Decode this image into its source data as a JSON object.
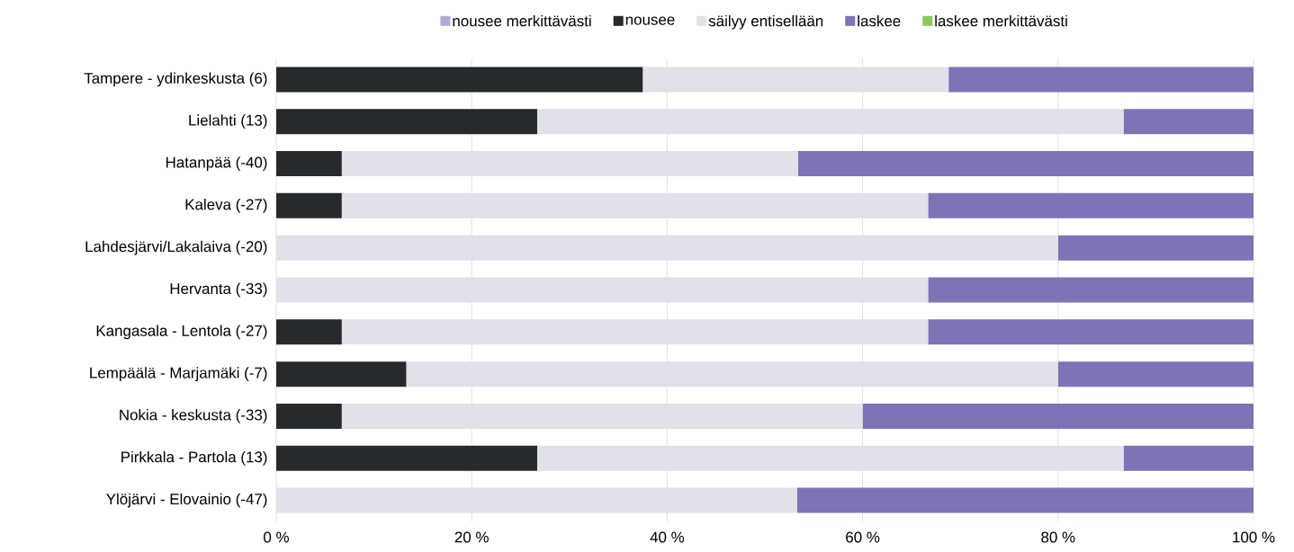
{
  "chart_data": {
    "type": "bar",
    "orientation": "horizontal",
    "stacked": true,
    "grid": "x",
    "legend": "top",
    "categories": [
      "Tampere - ydinkeskusta (6)",
      "Lielahti (13)",
      "Hatanpää (-40)",
      "Kaleva (-27)",
      "Lahdesjärvi/Lakalaiva (-20)",
      "Hervanta (-33)",
      "Kangasala - Lentola (-27)",
      "Lempäälä - Marjamäki (-7)",
      "Nokia - keskusta (-33)",
      "Pirkkala - Partola (13)",
      "Ylöjärvi - Elovainio (-47)"
    ],
    "series": [
      {
        "name": "nousee merkittävästi",
        "color": "#b4a9d9",
        "values": [
          0,
          0,
          0,
          0,
          0,
          0,
          0,
          0,
          0,
          0,
          0
        ]
      },
      {
        "name": "nousee",
        "color": "#272a2d",
        "values": [
          37.5,
          26.7,
          6.7,
          6.7,
          0,
          0,
          6.7,
          13.3,
          6.7,
          26.7,
          0
        ]
      },
      {
        "name": "säilyy entisellään",
        "color": "#e0e1e9",
        "values": [
          31.3,
          60,
          46.7,
          60,
          80,
          66.7,
          60,
          66.7,
          53.3,
          60,
          53.3
        ]
      },
      {
        "name": "laskee",
        "color": "#7f72b5",
        "values": [
          31.2,
          13.3,
          46.6,
          33.3,
          20,
          33.3,
          33.3,
          20,
          40,
          13.3,
          46.7
        ]
      },
      {
        "name": "laskee merkittävästi",
        "color": "#8cc85a",
        "values": [
          0,
          0,
          0,
          0,
          0,
          0,
          0,
          0,
          0,
          0,
          0
        ]
      }
    ],
    "xlim": [
      0,
      100
    ],
    "xticks": [
      {
        "value": 0,
        "label": "0 %"
      },
      {
        "value": 20,
        "label": "20 %"
      },
      {
        "value": 40,
        "label": "40 %"
      },
      {
        "value": 60,
        "label": "60 %"
      },
      {
        "value": 80,
        "label": "80 %"
      },
      {
        "value": 100,
        "label": "100 %"
      }
    ]
  }
}
